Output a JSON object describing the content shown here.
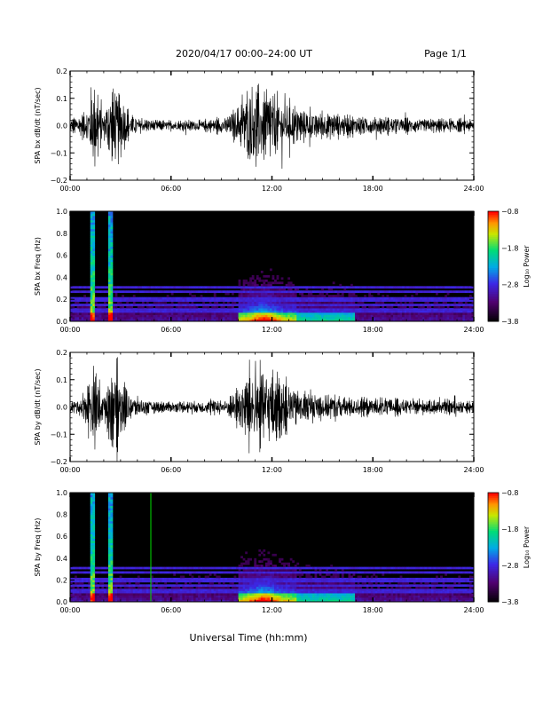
{
  "header": {
    "title": "2020/04/17  00:00–24:00 UT",
    "page": "Page 1/1"
  },
  "footer": {
    "xlabel": "Universal Time (hh:mm)"
  },
  "chart_data": [
    {
      "type": "line",
      "ylabel": "SPA bx dB/dt (nT/sec)",
      "xlim": [
        0,
        24
      ],
      "ylim": [
        -0.2,
        0.2
      ],
      "xticks": [
        "00:00",
        "06:00",
        "12:00",
        "18:00",
        "24:00"
      ],
      "yticks": [
        "−0.2",
        "−0.1",
        "0.0",
        "0.1",
        "0.2"
      ],
      "envelope": {
        "hours": [
          0,
          0.5,
          1,
          1.2,
          1.5,
          2,
          2.4,
          2.8,
          3.5,
          4,
          5,
          6,
          7,
          8,
          9,
          9.5,
          10,
          10.5,
          11,
          11.5,
          12,
          12.5,
          13,
          13.5,
          14,
          15,
          16,
          17,
          18,
          19,
          20,
          21,
          22,
          23,
          24
        ],
        "amplitude": [
          0.035,
          0.05,
          0.08,
          0.2,
          0.2,
          0.06,
          0.2,
          0.2,
          0.07,
          0.04,
          0.03,
          0.025,
          0.03,
          0.03,
          0.04,
          0.06,
          0.1,
          0.18,
          0.2,
          0.2,
          0.17,
          0.15,
          0.11,
          0.09,
          0.08,
          0.07,
          0.06,
          0.05,
          0.045,
          0.045,
          0.04,
          0.035,
          0.035,
          0.035,
          0.03
        ]
      }
    },
    {
      "type": "heatmap",
      "ylabel": "SPA bx Freq (Hz)",
      "xlim": [
        0,
        24
      ],
      "ylim": [
        0,
        1
      ],
      "xticks": [
        "00:00",
        "06:00",
        "12:00",
        "18:00",
        "24:00"
      ],
      "yticks": [
        "0.0",
        "0.2",
        "0.4",
        "0.6",
        "0.8",
        "1.0"
      ],
      "colorbar": {
        "label": "Log₁₀ Power",
        "ticks": [
          "−0.8",
          "−1.8",
          "−2.8",
          "−3.8"
        ],
        "range": [
          -3.8,
          -0.8
        ]
      },
      "active_hours": [
        1.2,
        1.4,
        2.3,
        2.5,
        10.5,
        11.5,
        12.0,
        12.5
      ],
      "harmonic_bands_hz": [
        0.1,
        0.15,
        0.2,
        0.27,
        0.31
      ]
    },
    {
      "type": "line",
      "ylabel": "SPA by dB/dt (nT/sec)",
      "xlim": [
        0,
        24
      ],
      "ylim": [
        -0.2,
        0.2
      ],
      "xticks": [
        "00:00",
        "06:00",
        "12:00",
        "18:00",
        "24:00"
      ],
      "yticks": [
        "−0.2",
        "−0.1",
        "0.0",
        "0.1",
        "0.2"
      ],
      "envelope": {
        "hours": [
          0,
          0.5,
          1,
          1.2,
          1.5,
          2,
          2.4,
          2.8,
          3.5,
          4,
          5,
          6,
          7,
          8,
          9,
          9.5,
          10,
          10.5,
          11,
          11.5,
          12,
          12.5,
          13,
          13.5,
          14,
          15,
          16,
          17,
          18,
          19,
          20,
          21,
          22,
          23,
          24
        ],
        "amplitude": [
          0.03,
          0.04,
          0.1,
          0.2,
          0.2,
          0.06,
          0.2,
          0.2,
          0.08,
          0.05,
          0.03,
          0.025,
          0.03,
          0.035,
          0.04,
          0.06,
          0.1,
          0.17,
          0.2,
          0.2,
          0.18,
          0.15,
          0.12,
          0.09,
          0.08,
          0.07,
          0.06,
          0.05,
          0.045,
          0.045,
          0.04,
          0.035,
          0.035,
          0.035,
          0.03
        ]
      }
    },
    {
      "type": "heatmap",
      "ylabel": "SPA by Freq (Hz)",
      "xlim": [
        0,
        24
      ],
      "ylim": [
        0,
        1
      ],
      "xticks": [
        "00:00",
        "06:00",
        "12:00",
        "18:00",
        "24:00"
      ],
      "yticks": [
        "0.0",
        "0.2",
        "0.4",
        "0.6",
        "0.8",
        "1.0"
      ],
      "colorbar": {
        "label": "Log₁₀ Power",
        "ticks": [
          "−0.8",
          "−1.8",
          "−2.8",
          "−3.8"
        ],
        "range": [
          -3.8,
          -0.8
        ]
      },
      "active_hours": [
        1.2,
        1.4,
        2.3,
        2.5,
        10.5,
        11.5,
        12.0,
        12.5
      ],
      "harmonic_bands_hz": [
        0.1,
        0.15,
        0.2,
        0.27,
        0.31
      ],
      "marker_line_hour": 4.8
    }
  ]
}
